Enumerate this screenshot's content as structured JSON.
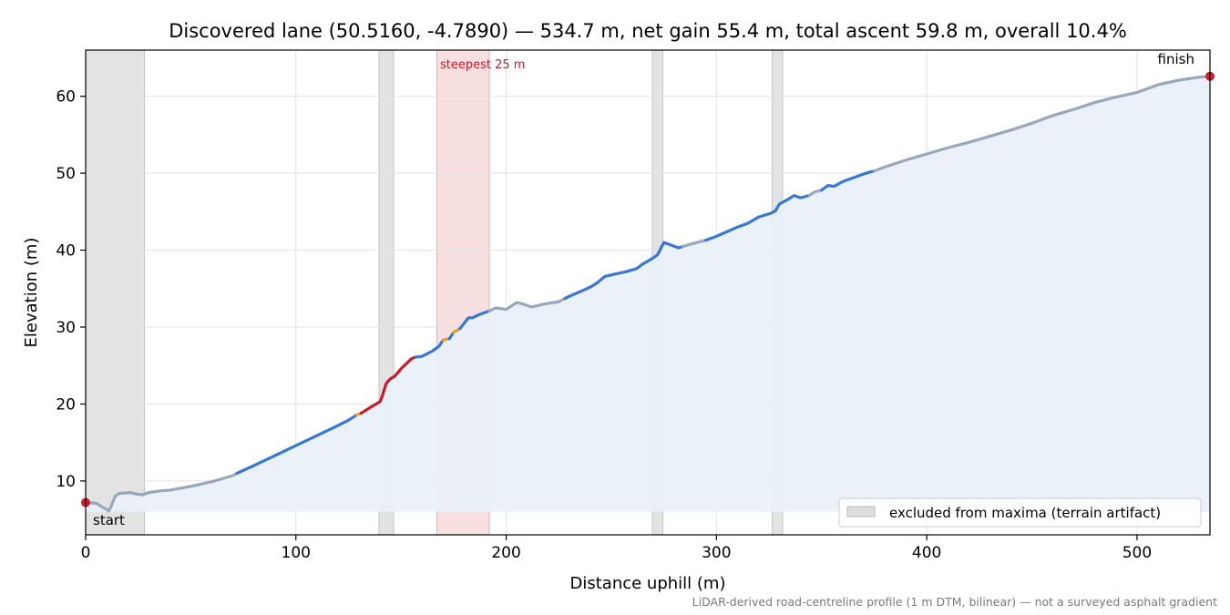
{
  "chart_data": {
    "type": "line",
    "title": "Discovered lane (50.5160, -4.7890) — 534.7 m, net gain 55.4 m, total ascent 59.8 m, overall 10.4%",
    "xlabel": "Distance uphill (m)",
    "ylabel": "Elevation (m)",
    "xlim": [
      0,
      534.7
    ],
    "ylim": [
      3,
      66
    ],
    "x_ticks": [
      0,
      100,
      200,
      300,
      400,
      500
    ],
    "y_ticks": [
      10,
      20,
      30,
      40,
      50,
      60
    ],
    "grid": true,
    "fill_baseline": 6,
    "profile": [
      [
        0,
        7.2
      ],
      [
        5,
        7.1
      ],
      [
        8,
        6.6
      ],
      [
        10,
        6.3
      ],
      [
        11,
        6.1
      ],
      [
        12,
        6.6
      ],
      [
        14,
        8.0
      ],
      [
        16,
        8.4
      ],
      [
        18,
        8.4
      ],
      [
        21,
        8.5
      ],
      [
        24,
        8.3
      ],
      [
        27,
        8.2
      ],
      [
        30,
        8.5
      ],
      [
        35,
        8.7
      ],
      [
        40,
        8.8
      ],
      [
        50,
        9.3
      ],
      [
        60,
        9.9
      ],
      [
        70,
        10.7
      ],
      [
        72,
        11.0
      ],
      [
        80,
        12.0
      ],
      [
        90,
        13.3
      ],
      [
        100,
        14.6
      ],
      [
        110,
        15.9
      ],
      [
        120,
        17.2
      ],
      [
        125,
        17.9
      ],
      [
        129,
        18.6
      ],
      [
        131,
        18.8
      ],
      [
        135,
        19.5
      ],
      [
        140,
        20.3
      ],
      [
        141,
        21.0
      ],
      [
        143,
        22.7
      ],
      [
        145,
        23.3
      ],
      [
        147,
        23.6
      ],
      [
        150,
        24.6
      ],
      [
        155,
        25.9
      ],
      [
        157,
        26.1
      ],
      [
        160,
        26.2
      ],
      [
        165,
        26.9
      ],
      [
        168,
        27.5
      ],
      [
        170,
        28.3
      ],
      [
        173,
        28.5
      ],
      [
        175,
        29.3
      ],
      [
        178,
        29.8
      ],
      [
        182,
        31.2
      ],
      [
        184,
        31.2
      ],
      [
        187,
        31.6
      ],
      [
        192,
        32.1
      ],
      [
        195,
        32.5
      ],
      [
        200,
        32.3
      ],
      [
        205,
        33.2
      ],
      [
        208,
        33.0
      ],
      [
        212,
        32.6
      ],
      [
        218,
        33.0
      ],
      [
        225,
        33.3
      ],
      [
        230,
        34.0
      ],
      [
        236,
        34.7
      ],
      [
        240,
        35.2
      ],
      [
        243,
        35.7
      ],
      [
        247,
        36.6
      ],
      [
        252,
        36.9
      ],
      [
        257,
        37.2
      ],
      [
        262,
        37.6
      ],
      [
        265,
        38.2
      ],
      [
        270,
        39.0
      ],
      [
        272,
        39.4
      ],
      [
        275,
        41.0
      ],
      [
        279,
        40.6
      ],
      [
        282,
        40.3
      ],
      [
        288,
        40.8
      ],
      [
        295,
        41.3
      ],
      [
        300,
        41.8
      ],
      [
        305,
        42.4
      ],
      [
        310,
        43.0
      ],
      [
        315,
        43.5
      ],
      [
        320,
        44.3
      ],
      [
        326,
        44.8
      ],
      [
        328,
        45.1
      ],
      [
        330,
        46.0
      ],
      [
        334,
        46.6
      ],
      [
        337,
        47.1
      ],
      [
        340,
        46.8
      ],
      [
        344,
        47.1
      ],
      [
        347,
        47.6
      ],
      [
        350,
        47.8
      ],
      [
        353,
        48.4
      ],
      [
        356,
        48.3
      ],
      [
        360,
        48.9
      ],
      [
        365,
        49.4
      ],
      [
        370,
        49.9
      ],
      [
        375,
        50.3
      ],
      [
        380,
        50.8
      ],
      [
        390,
        51.7
      ],
      [
        400,
        52.5
      ],
      [
        410,
        53.3
      ],
      [
        420,
        54.0
      ],
      [
        430,
        54.8
      ],
      [
        440,
        55.6
      ],
      [
        450,
        56.5
      ],
      [
        460,
        57.5
      ],
      [
        470,
        58.3
      ],
      [
        480,
        59.2
      ],
      [
        490,
        59.9
      ],
      [
        500,
        60.5
      ],
      [
        505,
        61.0
      ],
      [
        510,
        61.5
      ],
      [
        520,
        62.1
      ],
      [
        530,
        62.5
      ],
      [
        534.7,
        62.6
      ]
    ],
    "grade_colors": {
      "excluded": "#98a8bc",
      "normal": "#3a76d3",
      "moderate": "#e6a11f",
      "steep": "#c21e2a"
    },
    "grade_segments": [
      {
        "from": 0,
        "to": 28,
        "grade": "excluded"
      },
      {
        "from": 28,
        "to": 72,
        "grade": "excluded"
      },
      {
        "from": 72,
        "to": 129,
        "grade": "normal"
      },
      {
        "from": 129,
        "to": 131,
        "grade": "moderate"
      },
      {
        "from": 131,
        "to": 157,
        "grade": "steep"
      },
      {
        "from": 157,
        "to": 170,
        "grade": "normal"
      },
      {
        "from": 170,
        "to": 173,
        "grade": "moderate"
      },
      {
        "from": 173,
        "to": 175,
        "grade": "normal"
      },
      {
        "from": 175,
        "to": 178,
        "grade": "moderate"
      },
      {
        "from": 178,
        "to": 192,
        "grade": "normal"
      },
      {
        "from": 192,
        "to": 228,
        "grade": "excluded"
      },
      {
        "from": 228,
        "to": 284,
        "grade": "normal"
      },
      {
        "from": 284,
        "to": 295,
        "grade": "excluded"
      },
      {
        "from": 295,
        "to": 305,
        "grade": "normal"
      },
      {
        "from": 305,
        "to": 328,
        "grade": "normal"
      },
      {
        "from": 328,
        "to": 344,
        "grade": "normal"
      },
      {
        "from": 344,
        "to": 350,
        "grade": "excluded"
      },
      {
        "from": 350,
        "to": 375,
        "grade": "normal"
      },
      {
        "from": 375,
        "to": 534.7,
        "grade": "excluded"
      }
    ],
    "excluded_bands": [
      [
        0,
        28
      ],
      [
        139.5,
        146.5
      ],
      [
        269.5,
        274.5
      ],
      [
        326.5,
        331.5
      ]
    ],
    "steepest_band": {
      "from": 167,
      "to": 192,
      "label": "steepest 25 m"
    },
    "endpoints": [
      {
        "x": 0,
        "y": 7.2,
        "label": "start"
      },
      {
        "x": 534.7,
        "y": 62.6,
        "label": "finish"
      }
    ],
    "legend": {
      "label": "excluded from maxima (terrain artifact)",
      "placement": "lower-right"
    },
    "footnote": "LiDAR-derived road-centreline profile (1 m DTM, bilinear) — not a surveyed asphalt gradient",
    "colors": {
      "fill": "#eaf0f9",
      "excluded_band": "#c8c8c8",
      "steepest_band": "#f2c4c7",
      "endpoint_marker": "#d01c2a",
      "steepest_label": "#c21e2a",
      "grid": "#e3e3e3"
    }
  }
}
